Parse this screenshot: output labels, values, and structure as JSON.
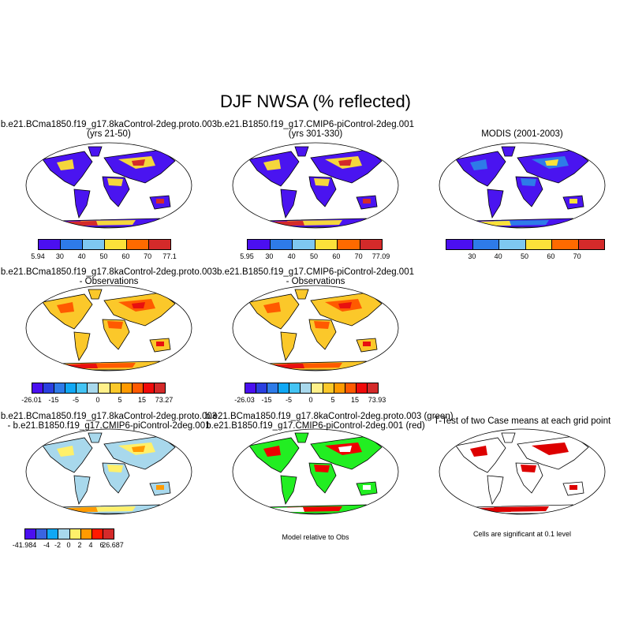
{
  "title": "DJF NWSA (% reflected)",
  "panels": [
    {
      "title1": "b.e21.BCma1850.f19_g17.8kaControl-2deg.proto.003",
      "title2": "(yrs 21-50)",
      "land": "#4a14f0",
      "patch": "#f5d63c",
      "patch2": "#d42a2a",
      "colorbar": {
        "colors": [
          "#4b0ff0",
          "#2e7be8",
          "#7ec8f0",
          "#fbe13a",
          "#ff6a00",
          "#d42a2a"
        ],
        "labels": [
          "5.94",
          "30",
          "40",
          "50",
          "60",
          "70",
          "77.1"
        ]
      }
    },
    {
      "title1": "b.e21.B1850.f19_g17.CMIP6-piControl-2deg.001",
      "title2": "(yrs 301-330)",
      "land": "#4a14f0",
      "patch": "#f5d63c",
      "patch2": "#d42a2a",
      "colorbar": {
        "colors": [
          "#4b0ff0",
          "#2e7be8",
          "#7ec8f0",
          "#fbe13a",
          "#ff6a00",
          "#d42a2a"
        ],
        "labels": [
          "5.95",
          "30",
          "40",
          "50",
          "60",
          "70",
          "77.09"
        ]
      }
    },
    {
      "title1": "MODIS (2001-2003)",
      "title2": "",
      "land": "#4a14f0",
      "patch": "#2e7be8",
      "patch2": "#fbe13a",
      "colorbar": {
        "colors": [
          "#4b0ff0",
          "#2e7be8",
          "#7ec8f0",
          "#fbe13a",
          "#ff6a00",
          "#d42a2a"
        ],
        "labels": [
          "",
          "30",
          "40",
          "50",
          "60",
          "70",
          ""
        ]
      }
    },
    {
      "title1": "b.e21.BCma1850.f19_g17.8kaControl-2deg.proto.003",
      "title2": "- Observations",
      "land": "#fbc82a",
      "patch": "#ff5a00",
      "patch2": "#e81010",
      "colorbar": {
        "colors": [
          "#4b0ff0",
          "#2a3fe0",
          "#2e7be8",
          "#10a8f5",
          "#44c4f4",
          "#a8d8ec",
          "#fff08a",
          "#fbc82a",
          "#ff9a00",
          "#ff5a00",
          "#f00a0a",
          "#d42a2a"
        ],
        "labels": [
          "-26.01",
          "-15",
          "-5",
          "0",
          "5",
          "15",
          "73.27"
        ]
      }
    },
    {
      "title1": "b.e21.B1850.f19_g17.CMIP6-piControl-2deg.001",
      "title2": "- Observations",
      "land": "#fbc82a",
      "patch": "#ff5a00",
      "patch2": "#e81010",
      "colorbar": {
        "colors": [
          "#4b0ff0",
          "#2a3fe0",
          "#2e7be8",
          "#10a8f5",
          "#44c4f4",
          "#a8d8ec",
          "#fff08a",
          "#fbc82a",
          "#ff9a00",
          "#ff5a00",
          "#f00a0a",
          "#d42a2a"
        ],
        "labels": [
          "-26.03",
          "-15",
          "-5",
          "0",
          "5",
          "15",
          "73.93"
        ]
      }
    },
    {
      "title1": "b.e21.BCma1850.f19_g17.8kaControl-2deg.proto.003",
      "title2": "- b.e21.B1850.f19_g17.CMIP6-piControl-2deg.001",
      "land": "#a8d8ec",
      "patch": "#fff06a",
      "patch2": "#ff9a00",
      "colorbar": {
        "colors": [
          "#4b0ff0",
          "#3a64e0",
          "#10a8f5",
          "#a8d8ec",
          "#fff06a",
          "#ff9a00",
          "#ff1a00",
          "#d42a2a"
        ],
        "labels": [
          "-41.984",
          "",
          "-4",
          "-2",
          "0",
          "2",
          "4",
          "6",
          "26.687"
        ]
      }
    },
    {
      "title1": "b.e21.BCma1850.f19_g17.8kaControl-2deg.proto.003 (green)",
      "title2": "b.e21.B1850.f19_g17.CMIP6-piControl-2deg.001 (red)",
      "land": "#22ee22",
      "patch": "#ee0000",
      "patch2": "#ffffff",
      "note": "Model relative to Obs"
    },
    {
      "title1": "T-Test of two Case means at each grid point",
      "title2": "",
      "land": "#ffffff",
      "patch": "#dd0000",
      "patch2": "#dd0000",
      "note": "Cells are significant at 0.1 level"
    }
  ]
}
